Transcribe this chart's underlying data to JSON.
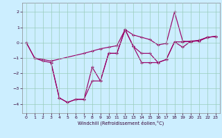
{
  "xlabel": "Windchill (Refroidissement éolien,°C)",
  "bg_color": "#cceeff",
  "line_color": "#990066",
  "grid_color": "#99ccbb",
  "xlim": [
    -0.5,
    23.5
  ],
  "ylim": [
    -4.6,
    2.6
  ],
  "xticks": [
    0,
    1,
    2,
    3,
    4,
    5,
    6,
    7,
    8,
    9,
    10,
    11,
    12,
    13,
    14,
    15,
    16,
    17,
    18,
    19,
    20,
    21,
    22,
    23
  ],
  "yticks": [
    -4,
    -3,
    -2,
    -1,
    0,
    1,
    2
  ],
  "line1_x": [
    0,
    1,
    2,
    3,
    4,
    5,
    6,
    7,
    8,
    9,
    10,
    11,
    12,
    13,
    14,
    15,
    16,
    17,
    18,
    19,
    20,
    21,
    22,
    23
  ],
  "line1_y": [
    0,
    -1,
    -1.2,
    -1.3,
    -3.6,
    -3.9,
    -3.7,
    -3.7,
    -1.6,
    -2.5,
    -0.7,
    -0.7,
    0.85,
    -0.25,
    -0.7,
    -0.7,
    -1.3,
    -1.1,
    0.05,
    -0.3,
    0.1,
    0.15,
    0.35,
    0.4
  ],
  "line2_x": [
    0,
    1,
    2,
    3,
    7,
    8,
    9,
    10,
    11,
    12,
    13,
    14,
    15,
    16,
    17,
    18,
    19,
    20,
    21,
    22,
    23
  ],
  "line2_y": [
    0,
    -1,
    -1.1,
    -1.2,
    -0.7,
    -0.55,
    -0.4,
    -0.3,
    -0.2,
    0.85,
    0.5,
    0.35,
    0.2,
    -0.15,
    -0.05,
    2.0,
    0.1,
    0.05,
    0.15,
    0.35,
    0.4
  ],
  "line3_x": [
    3,
    4,
    5,
    6,
    7,
    8,
    9,
    10,
    11,
    12,
    13,
    14,
    15,
    16,
    17,
    18,
    19,
    20,
    21,
    22,
    23
  ],
  "line3_y": [
    -1.3,
    -3.6,
    -3.9,
    -3.7,
    -3.7,
    -2.5,
    -2.5,
    -0.7,
    -0.7,
    0.85,
    -0.25,
    -1.3,
    -1.3,
    -1.3,
    -1.1,
    0.05,
    0.05,
    0.1,
    0.1,
    0.35,
    0.4
  ]
}
